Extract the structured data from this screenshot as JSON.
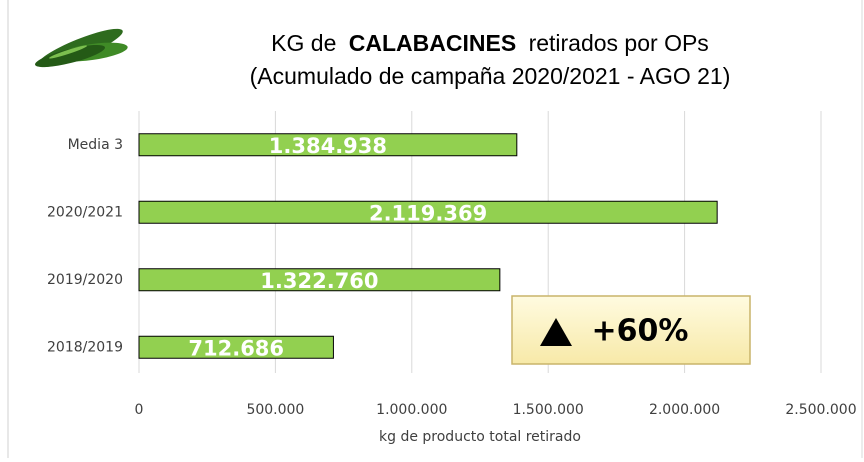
{
  "chart_data": {
    "type": "bar",
    "orientation": "horizontal",
    "title_prefix": "KG de",
    "title_bold": "CALABACINES",
    "title_suffix": "retirados por OPs",
    "subtitle": "(Acumulado de campaña 2020/2021 - AGO 21)",
    "x_label": "kg de producto total retirado",
    "categories": [
      "Media 3",
      "2020/2021",
      "2019/2020",
      "2018/2019"
    ],
    "values": [
      1384938,
      2119369,
      1322760,
      712686
    ],
    "value_labels": [
      "1.384.938",
      "2.119.369",
      "1.322.760",
      "712.686"
    ],
    "color": "#92d050",
    "xlim": [
      0,
      2500000
    ],
    "xticks": [
      0,
      {
        "value": 500000,
        "label": "500.000"
      },
      {
        "value": 1000000,
        "label": "1.000.000"
      },
      {
        "value": 1500000,
        "label": "1.500.000"
      },
      {
        "value": 2000000,
        "label": "2.000.000"
      },
      {
        "value": 2500000,
        "label": "2.500.000"
      }
    ],
    "grid": true,
    "annotation": "+60%"
  }
}
